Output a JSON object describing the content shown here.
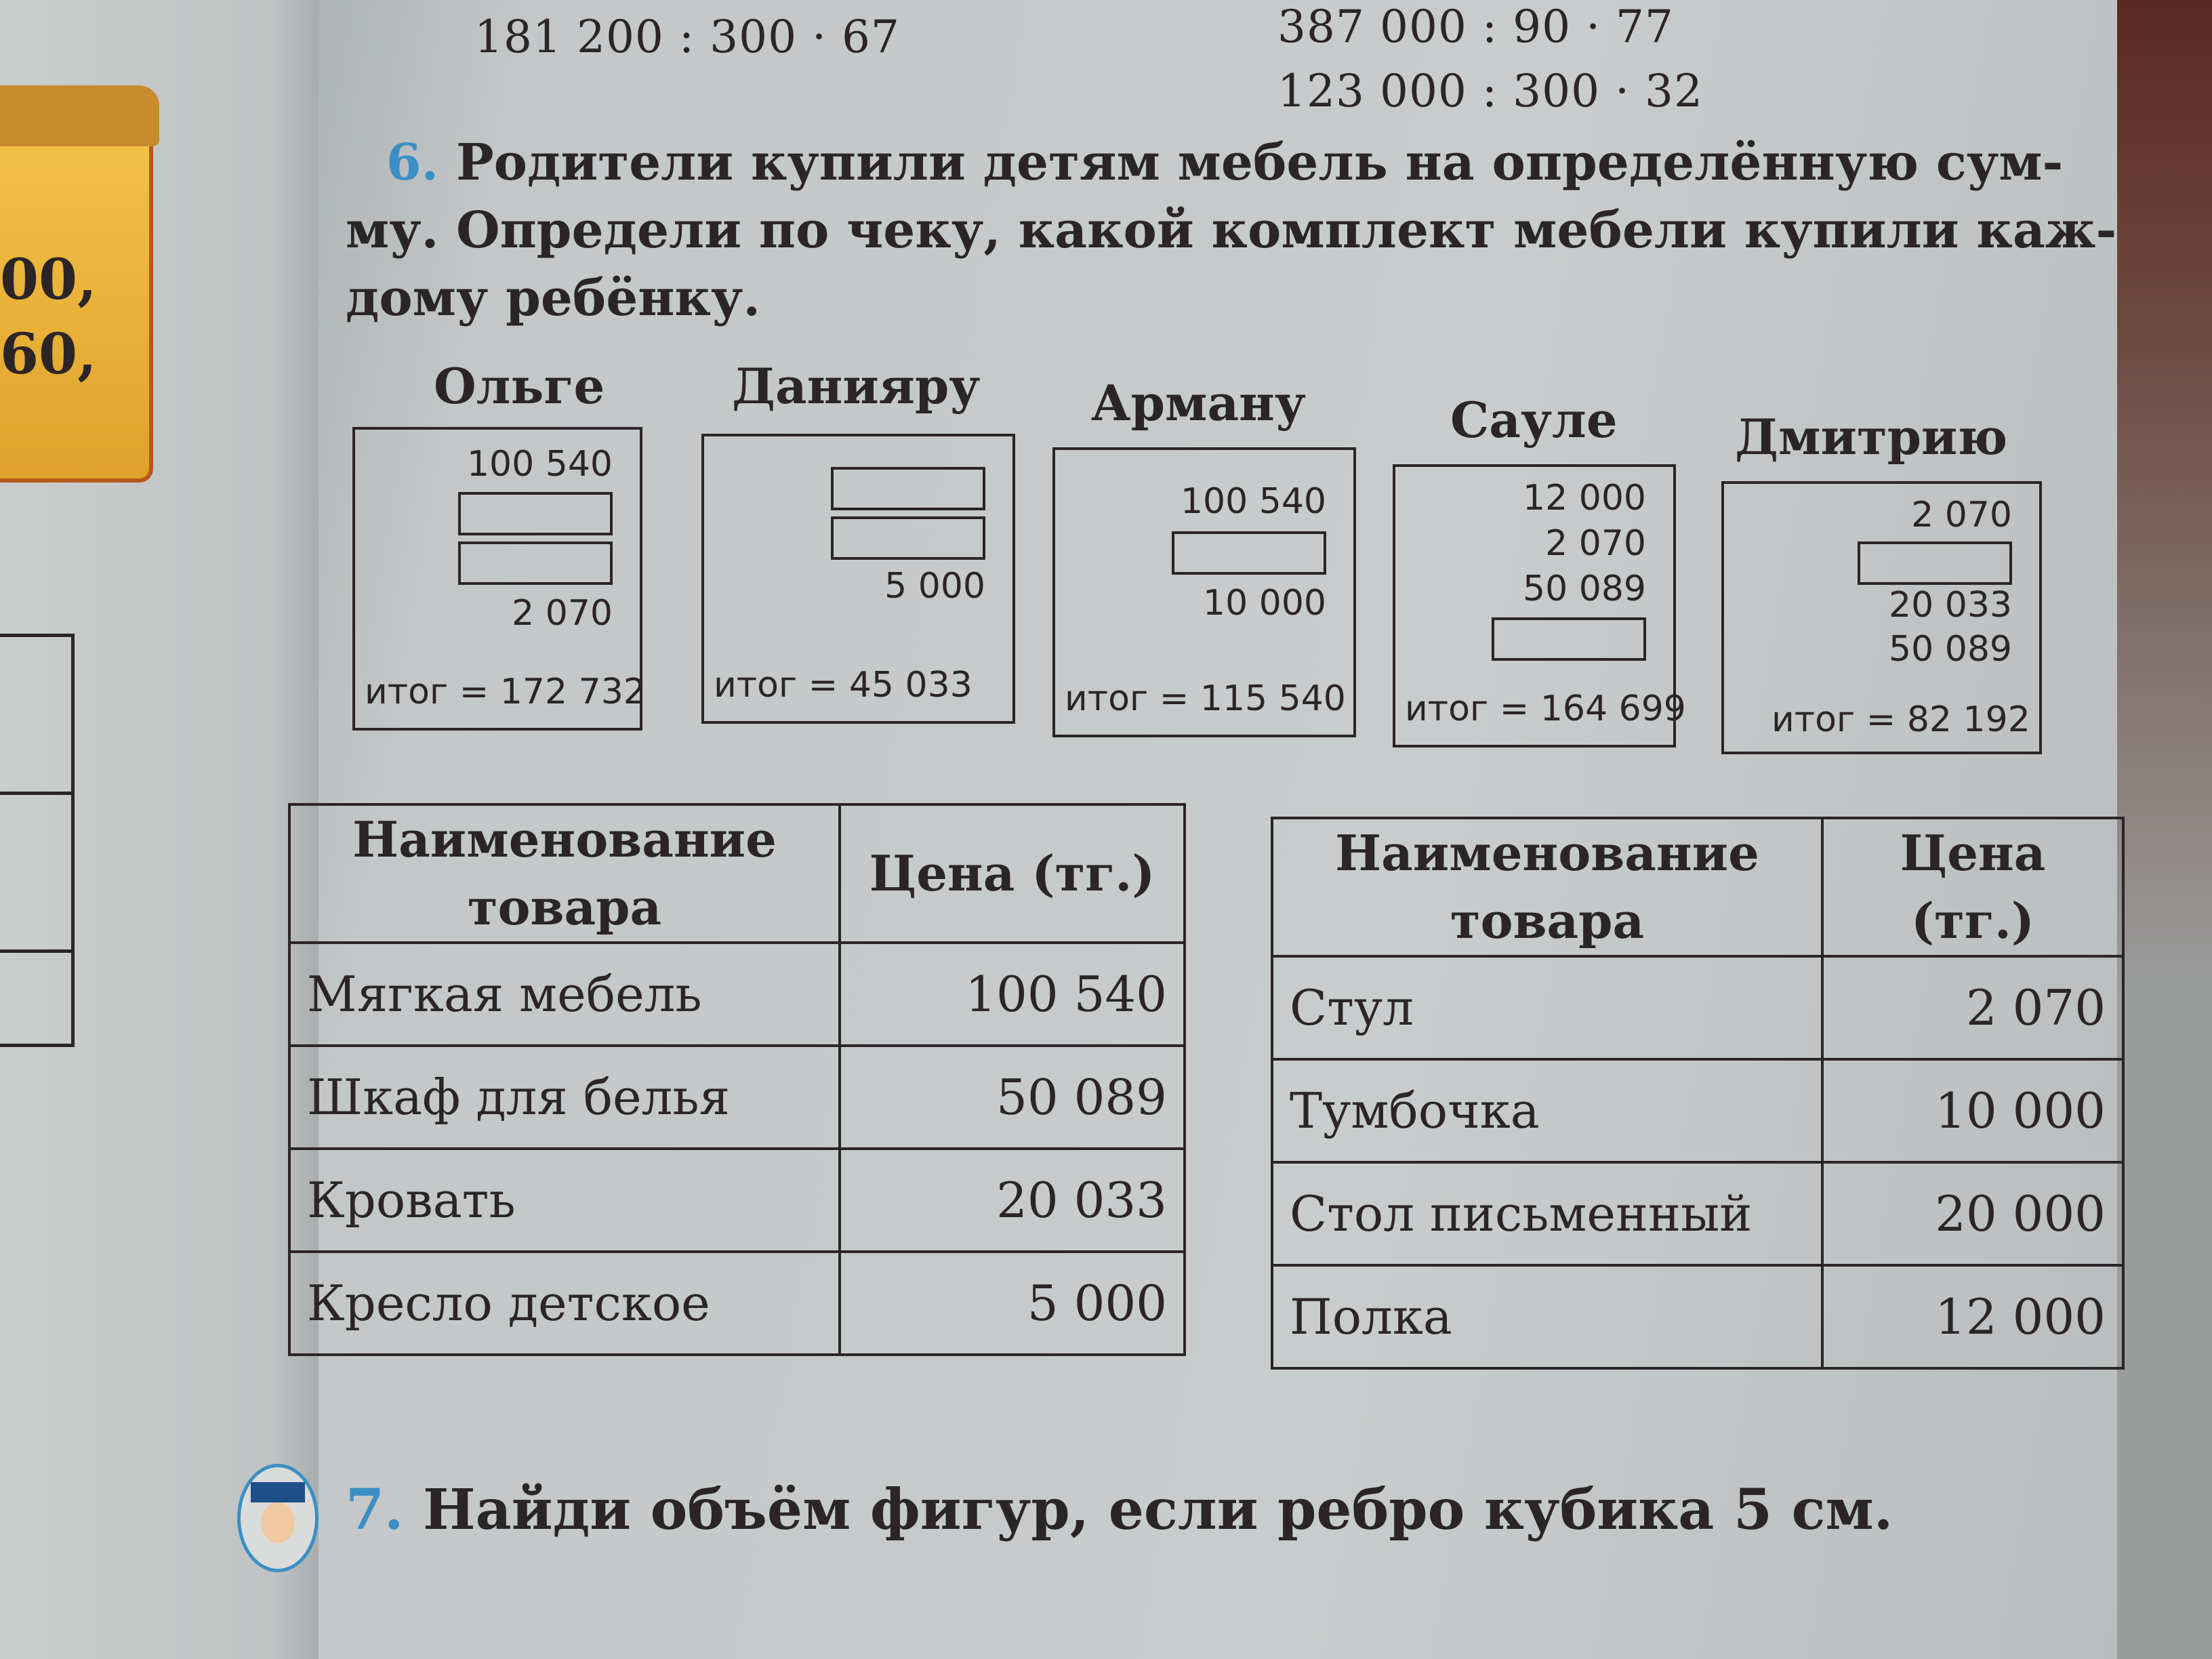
{
  "left_page": {
    "fragments": [
      "00,",
      "60,"
    ]
  },
  "top_expressions": [
    "181 200 : 300 · 67",
    "387 000 : 90 · 77",
    "123 000 : 300 · 32"
  ],
  "task6": {
    "number": "6.",
    "lines": [
      "Родители купили детям мебель на определённую сум-",
      "му. Определи по чеку, какой комплект мебели купили каж-",
      "дому ребёнку."
    ]
  },
  "receipts": [
    {
      "name": "Ольге",
      "items": [
        "100 540",
        "",
        "",
        "2 070"
      ],
      "total": "итог = 172 732"
    },
    {
      "name": "Данияру",
      "items": [
        "",
        "",
        "5 000"
      ],
      "total": "итог = 45 033"
    },
    {
      "name": "Арману",
      "items": [
        "100 540",
        "",
        "10 000"
      ],
      "total": "итог = 115 540"
    },
    {
      "name": "Сауле",
      "items": [
        "12 000",
        "2 070",
        "50 089",
        ""
      ],
      "total": "итог = 164 699"
    },
    {
      "name": "Дмитрию",
      "items": [
        "2 070",
        "",
        "20 033",
        "50 089"
      ],
      "total": "итог = 82 192"
    }
  ],
  "tables": [
    {
      "headers": [
        "Наименование товара",
        "Цена (тг.)"
      ],
      "rows": [
        [
          "Мягкая мебель",
          "100 540"
        ],
        [
          "Шкаф для белья",
          "50 089"
        ],
        [
          "Кровать",
          "20 033"
        ],
        [
          "Кресло детское",
          "5 000"
        ]
      ]
    },
    {
      "headers": [
        "Наименование товара",
        "Цена (тг.)"
      ],
      "rows": [
        [
          "Стул",
          "2 070"
        ],
        [
          "Тумбочка",
          "10 000"
        ],
        [
          "Стол письменный",
          "20 000"
        ],
        [
          "Полка",
          "12 000"
        ]
      ]
    }
  ],
  "task7": {
    "number": "7.",
    "text": "Найди объём фигур, если ребро кубика 5 см."
  },
  "colors": {
    "task_number": "#3b8fc4",
    "ink": "#2b2528",
    "paper": "#c6caca"
  }
}
